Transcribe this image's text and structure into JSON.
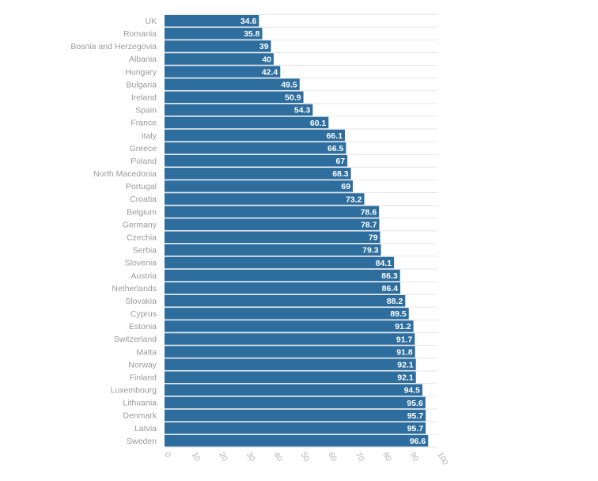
{
  "chart_data": {
    "type": "bar",
    "orientation": "horizontal",
    "categories": [
      "UK",
      "Romania",
      "Bosnia and Herzegovia",
      "Albania",
      "Hungary",
      "Bulgaria",
      "Ireland",
      "Spain",
      "France",
      "Italy",
      "Greece",
      "Poland",
      "North Macedonia",
      "Portugal",
      "Croatia",
      "Belgium",
      "Germany",
      "Czechia",
      "Serbia",
      "Slovenia",
      "Austria",
      "Netherlands",
      "Slovakia",
      "Cyprus",
      "Estonia",
      "Switzerland",
      "Malta",
      "Norway",
      "Finland",
      "Luxembourg",
      "Lithuania",
      "Denmark",
      "Latvia",
      "Sweden"
    ],
    "values": [
      34.6,
      35.8,
      39,
      40,
      42.4,
      49.5,
      50.9,
      54.3,
      60.1,
      66.1,
      66.5,
      67,
      68.3,
      69,
      73.2,
      78.6,
      78.7,
      79,
      79.3,
      84.1,
      86.3,
      86.4,
      88.2,
      89.5,
      91.2,
      91.7,
      91.8,
      92.1,
      92.1,
      94.5,
      95.6,
      95.7,
      95.7,
      96.6
    ],
    "data_labels": [
      "34.6",
      "35.8",
      "39",
      "40",
      "42.4",
      "49.5",
      "50.9",
      "54.3",
      "60.1",
      "66.1",
      "66.5",
      "67",
      "68.3",
      "69",
      "73.2",
      "78.6",
      "78.7",
      "79",
      "79.3",
      "84.1",
      "86.3",
      "86.4",
      "88.2",
      "89.5",
      "91.2",
      "91.7",
      "91.8",
      "92.1",
      "92.1",
      "94.5",
      "95.6",
      "95.7",
      "95.7",
      "96.6"
    ],
    "xlim": [
      0,
      100
    ],
    "x_ticks": [
      "0",
      "10",
      "20",
      "30",
      "40",
      "50",
      "60",
      "70",
      "80",
      "90",
      "100"
    ],
    "grid": true,
    "bar_color": "#2e6e9e",
    "title": "",
    "xlabel": "",
    "ylabel": ""
  }
}
